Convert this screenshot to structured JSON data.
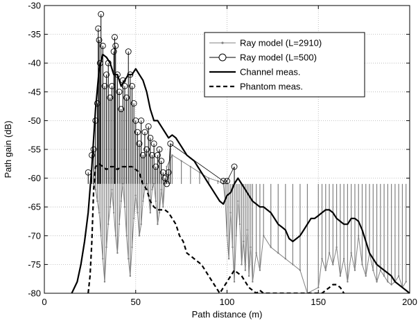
{
  "chart_data": {
    "type": "line",
    "title": "",
    "xlabel": "Path distance (m)",
    "ylabel": "Path gain (dB)",
    "xlim": [
      0,
      200
    ],
    "ylim": [
      -80,
      -30
    ],
    "xticks": [
      0,
      50,
      100,
      150,
      200
    ],
    "yticks": [
      -80,
      -75,
      -70,
      -65,
      -60,
      -55,
      -50,
      -45,
      -40,
      -35,
      -30
    ],
    "grid": true,
    "legend_position": "top-right",
    "series": [
      {
        "name": "Ray model (L=2910)",
        "style": "gray-dots",
        "color": "#808080",
        "description_points": [
          [
            27,
            -61
          ],
          [
            28,
            -62
          ],
          [
            29,
            -64
          ],
          [
            30,
            -66
          ],
          [
            31,
            -70
          ],
          [
            32,
            -74
          ],
          [
            33,
            -78
          ],
          [
            34,
            -72
          ],
          [
            35,
            -68
          ],
          [
            36,
            -65
          ],
          [
            37,
            -62
          ],
          [
            38,
            -66
          ],
          [
            39,
            -70
          ],
          [
            40,
            -73
          ],
          [
            41,
            -68
          ],
          [
            42,
            -64
          ],
          [
            43,
            -61
          ],
          [
            44,
            -65
          ],
          [
            45,
            -70
          ],
          [
            46,
            -74
          ],
          [
            47,
            -77
          ],
          [
            48,
            -72
          ],
          [
            49,
            -67
          ],
          [
            50,
            -63
          ],
          [
            51,
            -66
          ],
          [
            52,
            -70
          ],
          [
            53,
            -68
          ],
          [
            54,
            -64
          ],
          [
            55,
            -62
          ],
          [
            56,
            -61
          ],
          [
            57,
            -63
          ],
          [
            58,
            -66
          ],
          [
            59,
            -62
          ],
          [
            60,
            -61
          ],
          [
            61,
            -64
          ],
          [
            62,
            -68
          ],
          [
            63,
            -66
          ],
          [
            64,
            -62
          ],
          [
            65,
            -65
          ],
          [
            66,
            -61
          ],
          [
            67,
            -58
          ],
          [
            70,
            -56
          ],
          [
            75,
            -57
          ],
          [
            80,
            -58
          ],
          [
            85,
            -59
          ],
          [
            90,
            -60
          ],
          [
            95,
            -60.5
          ],
          [
            98,
            -61
          ],
          [
            99,
            -64
          ],
          [
            100,
            -70
          ],
          [
            101,
            -74
          ],
          [
            102,
            -66
          ],
          [
            103,
            -72
          ],
          [
            104,
            -78
          ],
          [
            105,
            -70
          ],
          [
            106,
            -64
          ],
          [
            107,
            -68
          ],
          [
            108,
            -75
          ],
          [
            109,
            -71
          ],
          [
            110,
            -76
          ],
          [
            111,
            -69
          ],
          [
            112,
            -77
          ],
          [
            113,
            -72
          ],
          [
            114,
            -78
          ],
          [
            116,
            -73
          ],
          [
            118,
            -76
          ],
          [
            120,
            -70
          ],
          [
            124,
            -72
          ],
          [
            128,
            -73
          ],
          [
            132,
            -74
          ],
          [
            136,
            -75
          ],
          [
            140,
            -76
          ],
          [
            144,
            -80
          ],
          [
            150,
            -79
          ],
          [
            152,
            -74
          ],
          [
            154,
            -76
          ],
          [
            156,
            -73
          ],
          [
            158,
            -75
          ],
          [
            160,
            -72
          ],
          [
            162,
            -77
          ],
          [
            164,
            -74
          ],
          [
            166,
            -78
          ],
          [
            168,
            -73
          ],
          [
            170,
            -76
          ],
          [
            172,
            -70
          ],
          [
            174,
            -75
          ],
          [
            176,
            -77
          ],
          [
            178,
            -73
          ],
          [
            180,
            -76
          ],
          [
            182,
            -78
          ],
          [
            184,
            -76
          ],
          [
            186,
            -77
          ],
          [
            188,
            -78
          ],
          [
            190,
            -78.5
          ],
          [
            192,
            -78
          ],
          [
            194,
            -77
          ],
          [
            196,
            -79
          ],
          [
            198,
            -78
          ]
        ]
      },
      {
        "name": "Ray model (L=500)",
        "style": "black-stems-circles",
        "color": "#000000",
        "points": [
          [
            24,
            -59
          ],
          [
            26,
            -56
          ],
          [
            27,
            -55
          ],
          [
            28,
            -50
          ],
          [
            29,
            -47
          ],
          [
            29.5,
            -34
          ],
          [
            30,
            -36
          ],
          [
            30.5,
            -40
          ],
          [
            31,
            -31.5
          ],
          [
            32,
            -37
          ],
          [
            33,
            -44
          ],
          [
            34,
            -42
          ],
          [
            35,
            -40
          ],
          [
            36,
            -46
          ],
          [
            37,
            -44
          ],
          [
            38,
            -38
          ],
          [
            38.5,
            -35.5
          ],
          [
            39,
            -37
          ],
          [
            40,
            -42
          ],
          [
            41,
            -45
          ],
          [
            42,
            -48
          ],
          [
            43,
            -43
          ],
          [
            44,
            -44
          ],
          [
            45,
            -46
          ],
          [
            46,
            -38
          ],
          [
            47,
            -42
          ],
          [
            48,
            -44
          ],
          [
            49,
            -47
          ],
          [
            50,
            -50
          ],
          [
            51,
            -52
          ],
          [
            52,
            -54
          ],
          [
            53,
            -50
          ],
          [
            54,
            -56
          ],
          [
            55,
            -52
          ],
          [
            56,
            -55
          ],
          [
            57,
            -51
          ],
          [
            58,
            -53
          ],
          [
            59,
            -56
          ],
          [
            60,
            -54
          ],
          [
            61,
            -58
          ],
          [
            62,
            -56
          ],
          [
            63,
            -55
          ],
          [
            64,
            -57
          ],
          [
            65,
            -59
          ],
          [
            66,
            -60
          ],
          [
            67,
            -61
          ],
          [
            68,
            -59
          ],
          [
            69,
            -54
          ],
          [
            98,
            -60.5
          ],
          [
            100,
            -60.5
          ],
          [
            104,
            -58
          ]
        ]
      },
      {
        "name": "Channel meas.",
        "style": "solid",
        "color": "#000000",
        "points": [
          [
            15,
            -80
          ],
          [
            18,
            -78
          ],
          [
            20,
            -75
          ],
          [
            22,
            -71
          ],
          [
            24,
            -66
          ],
          [
            26,
            -58
          ],
          [
            28,
            -48
          ],
          [
            30,
            -41
          ],
          [
            32,
            -38.5
          ],
          [
            34,
            -39
          ],
          [
            36,
            -40
          ],
          [
            38,
            -42
          ],
          [
            40,
            -42
          ],
          [
            42,
            -44
          ],
          [
            44,
            -43
          ],
          [
            46,
            -42
          ],
          [
            48,
            -42
          ],
          [
            50,
            -41
          ],
          [
            52,
            -42
          ],
          [
            54,
            -43
          ],
          [
            56,
            -45
          ],
          [
            58,
            -48
          ],
          [
            60,
            -50
          ],
          [
            62,
            -50
          ],
          [
            64,
            -51
          ],
          [
            66,
            -52
          ],
          [
            68,
            -53
          ],
          [
            70,
            -52.5
          ],
          [
            72,
            -53
          ],
          [
            74,
            -54
          ],
          [
            76,
            -55
          ],
          [
            78,
            -56
          ],
          [
            80,
            -56.5
          ],
          [
            82,
            -57
          ],
          [
            84,
            -58
          ],
          [
            86,
            -59
          ],
          [
            88,
            -60
          ],
          [
            90,
            -61
          ],
          [
            92,
            -62
          ],
          [
            94,
            -63
          ],
          [
            96,
            -64
          ],
          [
            98,
            -64.5
          ],
          [
            100,
            -63
          ],
          [
            102,
            -62.5
          ],
          [
            104,
            -61
          ],
          [
            106,
            -60
          ],
          [
            108,
            -61
          ],
          [
            110,
            -62
          ],
          [
            112,
            -63
          ],
          [
            114,
            -64
          ],
          [
            116,
            -64.5
          ],
          [
            118,
            -65
          ],
          [
            120,
            -65
          ],
          [
            122,
            -65.5
          ],
          [
            124,
            -66
          ],
          [
            126,
            -67
          ],
          [
            128,
            -68
          ],
          [
            130,
            -68.5
          ],
          [
            132,
            -69
          ],
          [
            134,
            -70.5
          ],
          [
            136,
            -71
          ],
          [
            138,
            -70.5
          ],
          [
            140,
            -70
          ],
          [
            142,
            -69
          ],
          [
            144,
            -68
          ],
          [
            146,
            -67
          ],
          [
            148,
            -67
          ],
          [
            150,
            -66.5
          ],
          [
            152,
            -66
          ],
          [
            154,
            -65.5
          ],
          [
            156,
            -65.5
          ],
          [
            158,
            -66
          ],
          [
            160,
            -67
          ],
          [
            162,
            -67.5
          ],
          [
            164,
            -68
          ],
          [
            166,
            -68
          ],
          [
            168,
            -67
          ],
          [
            170,
            -67
          ],
          [
            172,
            -67.5
          ],
          [
            174,
            -69
          ],
          [
            176,
            -71
          ],
          [
            178,
            -73
          ],
          [
            180,
            -74
          ],
          [
            182,
            -75
          ],
          [
            184,
            -75.5
          ],
          [
            186,
            -76
          ],
          [
            188,
            -76.5
          ],
          [
            190,
            -77
          ],
          [
            192,
            -78
          ],
          [
            194,
            -78.5
          ],
          [
            196,
            -79
          ],
          [
            198,
            -79.5
          ],
          [
            200,
            -80
          ]
        ]
      },
      {
        "name": "Phantom meas.",
        "style": "dashed",
        "color": "#000000",
        "points": [
          [
            24,
            -80
          ],
          [
            25,
            -77
          ],
          [
            26,
            -71
          ],
          [
            27,
            -62
          ],
          [
            28,
            -58
          ],
          [
            30,
            -57.5
          ],
          [
            32,
            -58
          ],
          [
            34,
            -58.5
          ],
          [
            36,
            -58
          ],
          [
            38,
            -58
          ],
          [
            40,
            -58.5
          ],
          [
            42,
            -58
          ],
          [
            44,
            -58
          ],
          [
            46,
            -58
          ],
          [
            48,
            -58
          ],
          [
            50,
            -58.5
          ],
          [
            52,
            -59
          ],
          [
            54,
            -61
          ],
          [
            56,
            -62
          ],
          [
            58,
            -64
          ],
          [
            60,
            -65
          ],
          [
            62,
            -65.5
          ],
          [
            64,
            -65.5
          ],
          [
            66,
            -65.5
          ],
          [
            68,
            -66
          ],
          [
            70,
            -67
          ],
          [
            72,
            -68
          ],
          [
            74,
            -70
          ],
          [
            76,
            -71
          ],
          [
            78,
            -73
          ],
          [
            80,
            -73.5
          ],
          [
            82,
            -74
          ],
          [
            84,
            -74.5
          ],
          [
            86,
            -75
          ],
          [
            88,
            -76
          ],
          [
            90,
            -77
          ],
          [
            92,
            -78
          ],
          [
            94,
            -79
          ],
          [
            96,
            -80
          ],
          [
            98,
            -79
          ],
          [
            100,
            -78
          ],
          [
            102,
            -77
          ],
          [
            104,
            -76
          ],
          [
            106,
            -76.5
          ],
          [
            108,
            -77
          ],
          [
            110,
            -78
          ],
          [
            112,
            -79
          ],
          [
            114,
            -79.5
          ],
          [
            116,
            -80
          ],
          [
            118,
            -79.5
          ],
          [
            120,
            -80
          ],
          [
            152,
            -80
          ],
          [
            154,
            -79.5
          ],
          [
            156,
            -79
          ],
          [
            158,
            -78.5
          ],
          [
            160,
            -78.5
          ],
          [
            162,
            -79
          ],
          [
            164,
            -80
          ]
        ]
      }
    ]
  }
}
